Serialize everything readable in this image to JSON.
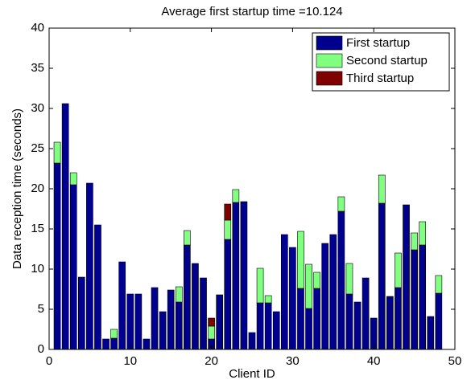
{
  "chart_data": {
    "type": "stacked_bar",
    "title": "Average first startup time =10.124",
    "x_label": "Client ID",
    "y_label": "Data reception time (seconds)",
    "x": [
      1,
      2,
      3,
      4,
      5,
      6,
      7,
      8,
      9,
      10,
      11,
      12,
      13,
      14,
      15,
      16,
      17,
      18,
      19,
      20,
      21,
      22,
      23,
      24,
      25,
      26,
      27,
      28,
      29,
      30,
      31,
      32,
      33,
      34,
      35,
      36,
      37,
      38,
      39,
      40,
      41,
      42,
      43,
      44,
      45,
      46,
      47,
      48
    ],
    "series": [
      {
        "name": "First startup",
        "color": "#00008f",
        "values": [
          23.2,
          30.6,
          20.5,
          9.0,
          20.7,
          15.5,
          1.3,
          1.4,
          10.9,
          6.9,
          6.9,
          1.3,
          7.7,
          4.7,
          7.4,
          5.9,
          13.0,
          10.7,
          8.9,
          1.3,
          6.8,
          13.7,
          18.3,
          18.4,
          2.1,
          5.8,
          5.8,
          4.7,
          14.3,
          12.7,
          7.6,
          5.1,
          7.6,
          13.2,
          14.3,
          17.2,
          6.9,
          5.9,
          8.9,
          3.9,
          18.2,
          6.6,
          7.7,
          18.0,
          12.4,
          13.0,
          4.1,
          7.0
        ]
      },
      {
        "name": "Second startup",
        "color": "#80ff80",
        "values": [
          2.6,
          0,
          1.5,
          0,
          0,
          0,
          0,
          1.1,
          0,
          0,
          0,
          0,
          0,
          0,
          0,
          1.9,
          1.8,
          0,
          0,
          1.6,
          0,
          2.4,
          1.6,
          0,
          0,
          4.3,
          0.9,
          0,
          0,
          0,
          7.1,
          5.5,
          2.0,
          0,
          0,
          1.8,
          3.8,
          0,
          0,
          0,
          3.5,
          0,
          4.3,
          0,
          2.1,
          2.9,
          0,
          2.2
        ]
      },
      {
        "name": "Third startup",
        "color": "#800000",
        "values": [
          0,
          0,
          0,
          0,
          0,
          0,
          0,
          0,
          0,
          0,
          0,
          0,
          0,
          0,
          0,
          0,
          0,
          0,
          0,
          1.0,
          0,
          2.0,
          0,
          0,
          0,
          0,
          0,
          0,
          0,
          0,
          0,
          0,
          0,
          0,
          0,
          0,
          0,
          0,
          0,
          0,
          0,
          0,
          0,
          0,
          0,
          0,
          0,
          0
        ]
      }
    ],
    "xlim": [
      0,
      50
    ],
    "xticks": [
      0,
      10,
      20,
      30,
      40,
      50
    ],
    "ylim": [
      0,
      40
    ],
    "yticks": [
      0,
      5,
      10,
      15,
      20,
      25,
      30,
      35,
      40
    ],
    "legend": "upper right"
  }
}
